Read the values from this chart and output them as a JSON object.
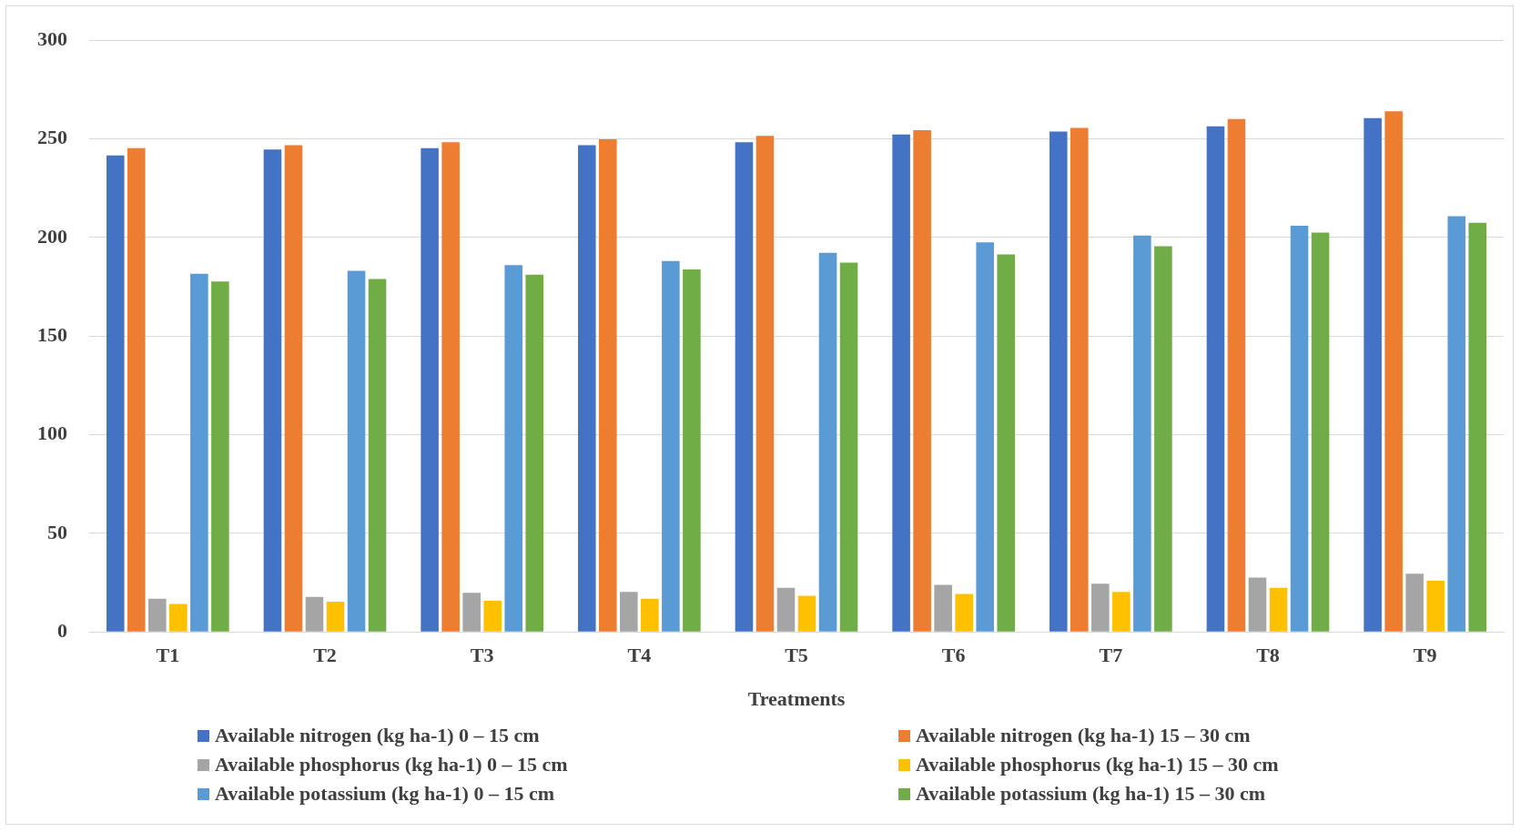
{
  "chart_data": {
    "type": "bar",
    "xlabel": "Treatments",
    "categories": [
      "T1",
      "T2",
      "T3",
      "T4",
      "T5",
      "T6",
      "T7",
      "T8",
      "T9"
    ],
    "series": [
      {
        "name": "Available nitrogen (kg ha-1) 0 – 15 cm",
        "color": "#4472c4",
        "values": [
          241.6,
          244.6,
          245.3,
          246.8,
          248.3,
          252.2,
          253.7,
          256.4,
          260.5
        ]
      },
      {
        "name": "Available nitrogen (kg ha-1) 15 – 30 cm",
        "color": "#ed7d31",
        "values": [
          245.3,
          246.8,
          248.3,
          249.8,
          251.5,
          254.4,
          255.6,
          260,
          264
        ]
      },
      {
        "name": "Available phosphorus (kg ha-1) 0 – 15 cm",
        "color": "#a5a5a5",
        "values": [
          16.8,
          17.8,
          19.8,
          20.3,
          22.4,
          23.9,
          24.4,
          27.5,
          29.5
        ]
      },
      {
        "name": "Available phosphorus (kg ha-1) 15 – 30 cm",
        "color": "#ffc000",
        "values": [
          14.2,
          15.3,
          15.8,
          16.8,
          18.3,
          19.3,
          20.3,
          22.4,
          25.9
        ]
      },
      {
        "name": "Available potassium (kg ha-1) 0 – 15 cm",
        "color": "#5b9bd5",
        "values": [
          181.6,
          183.1,
          186,
          188,
          192.2,
          197.5,
          201,
          205.9,
          210.8
        ]
      },
      {
        "name": "Available potassium (kg ha-1) 15 – 30 cm",
        "color": "#70ad47",
        "values": [
          177.7,
          178.9,
          181.1,
          183.8,
          187.3,
          191.4,
          195.6,
          202.5,
          207.4
        ]
      }
    ],
    "ylim": [
      0,
      300
    ],
    "yticks": [
      0,
      50,
      100,
      150,
      200,
      250,
      300
    ],
    "grid": "y",
    "legend": "bottom"
  }
}
